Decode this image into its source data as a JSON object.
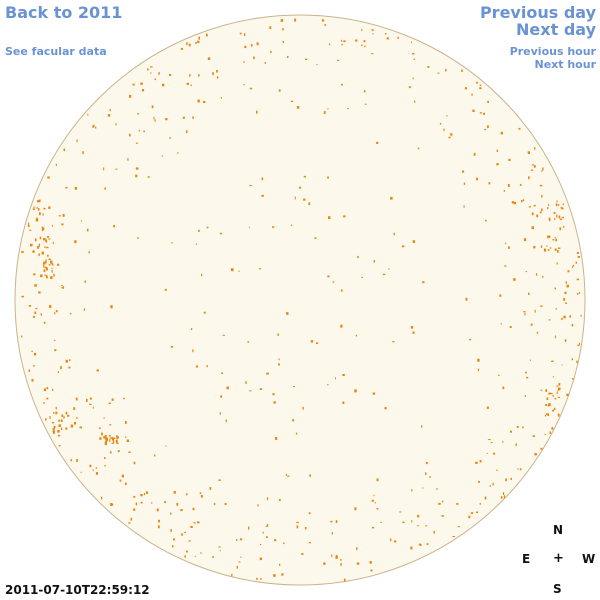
{
  "nav": {
    "back": "Back to 2011",
    "facular": "See facular data",
    "previous_day": "Previous day",
    "next_day": "Next day",
    "previous_hour": "Previous hour",
    "next_hour": "Next hour"
  },
  "timestamp": "2011-07-10T22:59:12",
  "compass": {
    "north": "N",
    "east": "E",
    "center": "+",
    "west": "W",
    "south": "S"
  },
  "colors": {
    "link": "#6a93d4",
    "disk_fill": "#fdf8ec",
    "disk_border": "#c9b48c",
    "facula": "#e8850c"
  }
}
